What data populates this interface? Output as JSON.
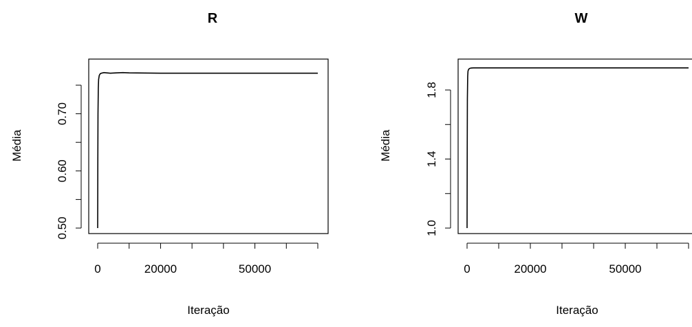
{
  "chart_data": [
    {
      "type": "line",
      "title": "R",
      "xlabel": "Iteração",
      "ylabel": "Média",
      "xlim": [
        0,
        70000
      ],
      "ylim": [
        0.5,
        0.78
      ],
      "x_ticks": [
        0,
        10000,
        20000,
        30000,
        40000,
        50000,
        60000,
        70000
      ],
      "x_tick_labels": [
        "0",
        "",
        "20000",
        "",
        "",
        "50000",
        "",
        ""
      ],
      "y_ticks": [
        0.5,
        0.55,
        0.6,
        0.65,
        0.7,
        0.75
      ],
      "y_tick_labels": [
        "0.50",
        "",
        "0.60",
        "",
        "0.70",
        ""
      ],
      "grid": false,
      "series": [
        {
          "x": [
            0,
            50,
            100,
            200,
            300,
            500,
            800,
            1200,
            2000,
            4000,
            6000,
            8000,
            10000,
            20000,
            40000,
            60000,
            70000
          ],
          "y": [
            0.5,
            0.62,
            0.7,
            0.745,
            0.76,
            0.767,
            0.77,
            0.771,
            0.772,
            0.771,
            0.7715,
            0.772,
            0.7715,
            0.771,
            0.771,
            0.771,
            0.771
          ]
        }
      ]
    },
    {
      "type": "line",
      "title": "W",
      "xlabel": "Iteração",
      "ylabel": "Média",
      "xlim": [
        0,
        70000
      ],
      "ylim": [
        1.0,
        1.96
      ],
      "x_ticks": [
        0,
        10000,
        20000,
        30000,
        40000,
        50000,
        60000,
        70000
      ],
      "x_tick_labels": [
        "0",
        "",
        "20000",
        "",
        "",
        "50000",
        "",
        ""
      ],
      "y_ticks": [
        1.0,
        1.2,
        1.4,
        1.6,
        1.8
      ],
      "y_tick_labels": [
        "1.0",
        "",
        "1.4",
        "",
        "1.8"
      ],
      "grid": false,
      "series": [
        {
          "x": [
            0,
            50,
            100,
            200,
            300,
            500,
            800,
            1200,
            2000,
            4000,
            8000,
            20000,
            40000,
            60000,
            70000
          ],
          "y": [
            1.0,
            1.45,
            1.75,
            1.88,
            1.91,
            1.92,
            1.925,
            1.927,
            1.928,
            1.928,
            1.928,
            1.928,
            1.928,
            1.928,
            1.928
          ]
        }
      ]
    }
  ]
}
